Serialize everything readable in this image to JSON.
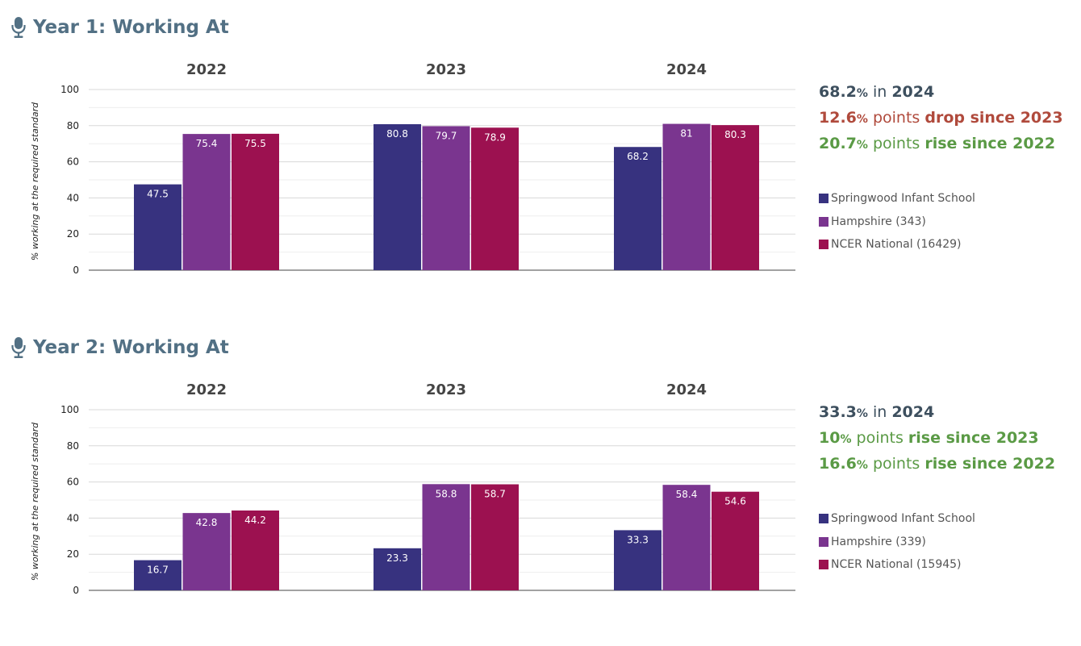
{
  "colors": {
    "school": "#37327f",
    "county": "#7a358f",
    "national": "#9c1150",
    "title": "#527084",
    "neutral": "#3d4f5e",
    "drop": "#b04a3c",
    "rise": "#5a9a45"
  },
  "sections": [
    {
      "title": "Year 1: Working At",
      "icon": "microphone-icon",
      "summary": {
        "line1": {
          "value": "68.2",
          "unit": "%",
          "middle": " in ",
          "year": "2024"
        },
        "line2": {
          "value": "12.6",
          "unit": "%",
          "middle": " points ",
          "phrase": "drop since 2023",
          "trend": "drop"
        },
        "line3": {
          "value": "20.7",
          "unit": "%",
          "middle": " points ",
          "phrase": "rise since 2022",
          "trend": "rise"
        }
      },
      "legend": [
        "Springwood Infant School",
        "Hampshire (343)",
        "NCER National (16429)"
      ]
    },
    {
      "title": "Year 2: Working At",
      "icon": "microphone-icon",
      "summary": {
        "line1": {
          "value": "33.3",
          "unit": "%",
          "middle": " in ",
          "year": "2024"
        },
        "line2": {
          "value": "10",
          "unit": "%",
          "middle": " points ",
          "phrase": "rise since 2023",
          "trend": "rise"
        },
        "line3": {
          "value": "16.6",
          "unit": "%",
          "middle": " points ",
          "phrase": "rise since 2022",
          "trend": "rise"
        }
      },
      "legend": [
        "Springwood Infant School",
        "Hampshire (339)",
        "NCER National (15945)"
      ]
    }
  ],
  "chart_data": [
    {
      "type": "bar",
      "categories": [
        "2022",
        "2023",
        "2024"
      ],
      "series": [
        {
          "name": "Springwood Infant School",
          "values": [
            47.5,
            80.8,
            68.2
          ]
        },
        {
          "name": "Hampshire (343)",
          "values": [
            75.4,
            79.7,
            81
          ]
        },
        {
          "name": "NCER National (16429)",
          "values": [
            75.5,
            78.9,
            80.3
          ]
        }
      ],
      "title": "Year 1: Working At",
      "xlabel": "",
      "ylabel": "% working at the required standard",
      "ylim": [
        0,
        100
      ],
      "yticks": [
        "0",
        "20",
        "40",
        "60",
        "80",
        "100"
      ],
      "grid": true,
      "legend": "right"
    },
    {
      "type": "bar",
      "categories": [
        "2022",
        "2023",
        "2024"
      ],
      "series": [
        {
          "name": "Springwood Infant School",
          "values": [
            16.7,
            23.3,
            33.3
          ]
        },
        {
          "name": "Hampshire (339)",
          "values": [
            42.8,
            58.8,
            58.4
          ]
        },
        {
          "name": "NCER National (15945)",
          "values": [
            44.2,
            58.7,
            54.6
          ]
        }
      ],
      "title": "Year 2: Working At",
      "xlabel": "",
      "ylabel": "% working at the required standard",
      "ylim": [
        0,
        100
      ],
      "yticks": [
        "0",
        "20",
        "40",
        "60",
        "80",
        "100"
      ],
      "grid": true,
      "legend": "right"
    }
  ]
}
